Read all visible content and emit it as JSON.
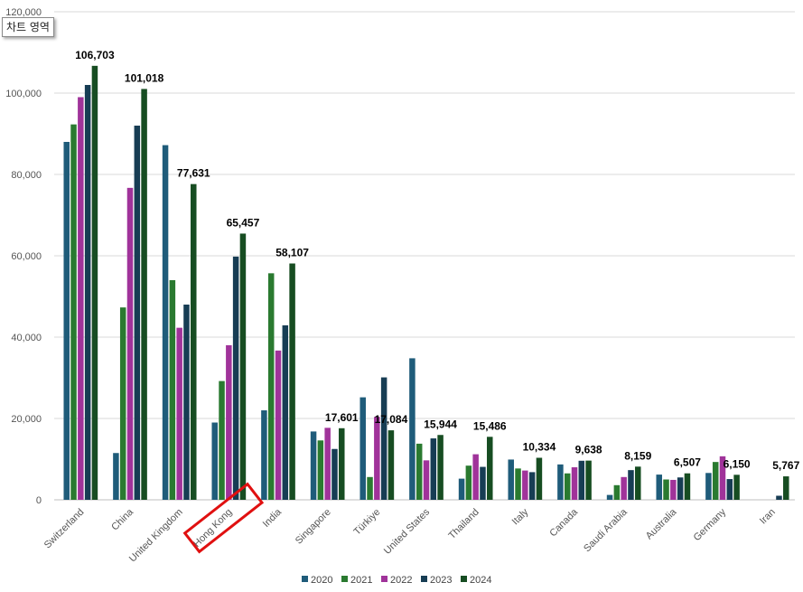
{
  "tooltip": "차트 영역",
  "chart_data": {
    "type": "bar",
    "title": "",
    "xlabel": "",
    "ylabel": "",
    "ylim": [
      0,
      120000
    ],
    "yticks": [
      0,
      20000,
      40000,
      60000,
      80000,
      100000,
      120000
    ],
    "ytick_labels": [
      "0",
      "20,000",
      "40,000",
      "60,000",
      "80,000",
      "100,000",
      "120,000"
    ],
    "grid": true,
    "legend_position": "bottom",
    "categories": [
      "Switzerland",
      "China",
      "United Kingdom",
      "Hong Kong",
      "India",
      "Singapore",
      "Türkiye",
      "United States",
      "Thailand",
      "Italy",
      "Canada",
      "Saudi Arabia",
      "Australia",
      "Germany",
      "Iran"
    ],
    "series": [
      {
        "name": "2020",
        "color": "#1f5c7a",
        "values": [
          88000,
          11500,
          87200,
          19000,
          22000,
          16800,
          25200,
          34800,
          5200,
          9900,
          8700,
          1200,
          6200,
          6600,
          0
        ]
      },
      {
        "name": "2021",
        "color": "#2a7a30",
        "values": [
          92300,
          47300,
          54000,
          29200,
          55700,
          14600,
          5600,
          13800,
          8400,
          7700,
          6500,
          3600,
          5000,
          9300,
          0
        ]
      },
      {
        "name": "2022",
        "color": "#a0339a",
        "values": [
          99000,
          76700,
          42300,
          38000,
          36700,
          17700,
          20400,
          9700,
          11200,
          7200,
          8000,
          5600,
          4900,
          10700,
          0
        ]
      },
      {
        "name": "2023",
        "color": "#173d54",
        "values": [
          102000,
          92000,
          48000,
          59800,
          42900,
          12500,
          30100,
          15100,
          8100,
          6800,
          9600,
          7300,
          5500,
          5100,
          1000
        ]
      },
      {
        "name": "2024",
        "color": "#174d22",
        "values": [
          106703,
          101018,
          77631,
          65457,
          58107,
          17601,
          17084,
          15944,
          15486,
          10334,
          9638,
          8159,
          6507,
          6150,
          5767
        ]
      }
    ],
    "data_labels": [
      "106,703",
      "101,018",
      "77,631",
      "65,457",
      "58,107",
      "17,601",
      "17,084",
      "15,944",
      "15,486",
      "10,334",
      "9,638",
      "8,159",
      "6,507",
      "6,150",
      "5,767"
    ],
    "highlight_category": "Hong Kong"
  }
}
